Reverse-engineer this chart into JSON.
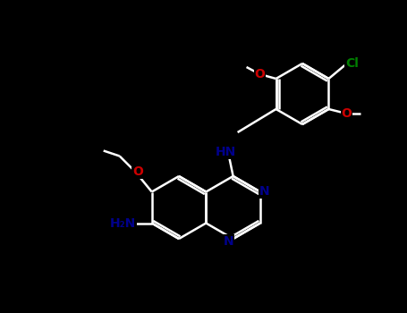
{
  "background_color": "#000000",
  "atom_colors": {
    "O": "#cc0000",
    "N": "#00008b",
    "Cl": "#008000",
    "NH": "#00008b",
    "NH2": "#00008b"
  },
  "figsize": [
    4.55,
    3.5
  ],
  "dpi": 100,
  "bond_color": "#ffffff",
  "lw": 1.8
}
